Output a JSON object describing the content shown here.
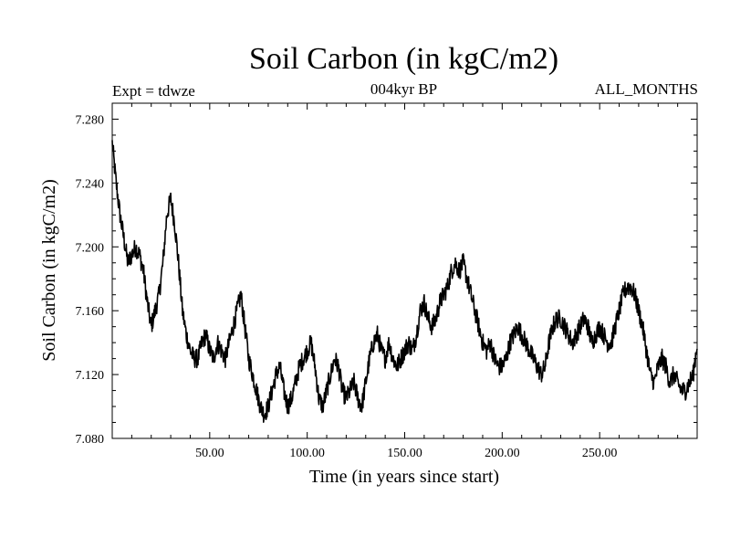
{
  "chart_data": {
    "type": "line",
    "title": "Soil Carbon (in kgC/m2)",
    "subtitle": "004kyr BP",
    "annotation_left": "Expt = tdwze",
    "annotation_right": "ALL_MONTHS",
    "xlabel": "Time (in years since start)",
    "ylabel": "Soil Carbon (in kgC/m2)",
    "xlim": [
      0,
      300
    ],
    "ylim": [
      7.08,
      7.29
    ],
    "xticks": [
      50,
      100,
      150,
      200,
      250
    ],
    "xtick_labels": [
      "50.00",
      "100.00",
      "150.00",
      "200.00",
      "250.00"
    ],
    "yticks": [
      7.08,
      7.12,
      7.16,
      7.2,
      7.24,
      7.28
    ],
    "ytick_labels": [
      "7.080",
      "7.120",
      "7.160",
      "7.200",
      "7.240",
      "7.280"
    ],
    "series": [
      {
        "name": "Soil Carbon",
        "color": "#000000",
        "x": [
          0,
          2,
          4,
          6,
          8,
          10,
          12,
          14,
          16,
          18,
          20,
          22,
          24,
          26,
          28,
          30,
          32,
          34,
          36,
          38,
          40,
          42,
          44,
          46,
          48,
          50,
          52,
          54,
          56,
          58,
          60,
          62,
          64,
          66,
          68,
          70,
          72,
          74,
          76,
          78,
          80,
          82,
          84,
          86,
          88,
          90,
          92,
          94,
          96,
          98,
          100,
          102,
          104,
          106,
          108,
          110,
          112,
          114,
          116,
          118,
          120,
          122,
          124,
          126,
          128,
          130,
          132,
          134,
          136,
          138,
          140,
          142,
          144,
          146,
          148,
          150,
          152,
          154,
          156,
          158,
          160,
          162,
          164,
          166,
          168,
          170,
          172,
          174,
          176,
          178,
          180,
          182,
          184,
          186,
          188,
          190,
          192,
          194,
          196,
          198,
          200,
          202,
          204,
          206,
          208,
          210,
          212,
          214,
          216,
          218,
          220,
          222,
          224,
          226,
          228,
          230,
          232,
          234,
          236,
          238,
          240,
          242,
          244,
          246,
          248,
          250,
          252,
          254,
          256,
          258,
          260,
          262,
          264,
          266,
          268,
          270,
          272,
          274,
          276,
          278,
          280,
          282,
          284,
          286,
          288,
          290,
          292,
          294,
          296,
          298,
          300
        ],
        "y": [
          7.265,
          7.24,
          7.22,
          7.205,
          7.19,
          7.195,
          7.2,
          7.195,
          7.185,
          7.165,
          7.15,
          7.16,
          7.17,
          7.19,
          7.22,
          7.23,
          7.215,
          7.19,
          7.16,
          7.145,
          7.135,
          7.13,
          7.13,
          7.14,
          7.145,
          7.135,
          7.13,
          7.14,
          7.135,
          7.13,
          7.14,
          7.15,
          7.16,
          7.17,
          7.15,
          7.13,
          7.12,
          7.11,
          7.1,
          7.095,
          7.1,
          7.11,
          7.12,
          7.125,
          7.11,
          7.1,
          7.105,
          7.115,
          7.125,
          7.13,
          7.135,
          7.14,
          7.125,
          7.105,
          7.1,
          7.11,
          7.12,
          7.13,
          7.125,
          7.11,
          7.105,
          7.11,
          7.115,
          7.105,
          7.1,
          7.115,
          7.13,
          7.14,
          7.145,
          7.135,
          7.13,
          7.14,
          7.13,
          7.125,
          7.13,
          7.135,
          7.14,
          7.135,
          7.145,
          7.16,
          7.165,
          7.155,
          7.15,
          7.155,
          7.165,
          7.17,
          7.175,
          7.185,
          7.19,
          7.185,
          7.19,
          7.18,
          7.17,
          7.16,
          7.15,
          7.14,
          7.135,
          7.14,
          7.13,
          7.125,
          7.125,
          7.13,
          7.14,
          7.145,
          7.15,
          7.145,
          7.14,
          7.135,
          7.13,
          7.125,
          7.12,
          7.125,
          7.14,
          7.15,
          7.155,
          7.155,
          7.15,
          7.145,
          7.14,
          7.145,
          7.15,
          7.155,
          7.15,
          7.14,
          7.145,
          7.15,
          7.145,
          7.14,
          7.14,
          7.15,
          7.16,
          7.17,
          7.175,
          7.175,
          7.17,
          7.16,
          7.15,
          7.135,
          7.12,
          7.115,
          7.125,
          7.13,
          7.125,
          7.115,
          7.12,
          7.115,
          7.11,
          7.11,
          7.115,
          7.12,
          7.14
        ],
        "noise_amplitude": 0.012
      }
    ]
  }
}
